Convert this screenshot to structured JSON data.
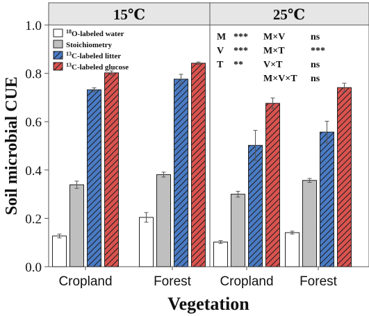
{
  "chart_data": {
    "type": "bar",
    "ylabel": "Soil microbial CUE",
    "xlabel": "Vegetation",
    "ylim": [
      0,
      1.0
    ],
    "yticks": [
      "0.0",
      "0.2",
      "0.4",
      "0.6",
      "0.8",
      "1.0"
    ],
    "grid": false,
    "legend_position": "top-left",
    "series": [
      {
        "name_sup": "18",
        "name": "O-labeled water",
        "color": "#ffffff",
        "pattern": "none"
      },
      {
        "name": "Stoichiometry",
        "color": "#bfbfbf",
        "pattern": "none"
      },
      {
        "name_sup": "13",
        "name": "C-labeled litter",
        "color": "#4a7bc4",
        "pattern": "hatch"
      },
      {
        "name_sup": "13",
        "name": "C-labeled glucose",
        "color": "#d9534f",
        "pattern": "hatch"
      }
    ],
    "panels": [
      {
        "title": "15℃",
        "groups": [
          {
            "category": "Cropland",
            "values": [
              0.127,
              0.339,
              0.732,
              0.802
            ],
            "errors": [
              0.008,
              0.015,
              0.008,
              0.008
            ]
          },
          {
            "category": "Forest",
            "values": [
              0.204,
              0.381,
              0.776,
              0.842
            ],
            "errors": [
              0.02,
              0.01,
              0.02,
              0.005
            ]
          }
        ]
      },
      {
        "title": "25℃",
        "groups": [
          {
            "category": "Cropland",
            "values": [
              0.102,
              0.3,
              0.502,
              0.676
            ],
            "errors": [
              0.006,
              0.012,
              0.062,
              0.022
            ]
          },
          {
            "category": "Forest",
            "values": [
              0.141,
              0.357,
              0.557,
              0.741
            ],
            "errors": [
              0.006,
              0.008,
              0.045,
              0.018
            ]
          }
        ]
      }
    ],
    "annotations": [
      {
        "col": 0,
        "row": 0,
        "term": "M",
        "sig": "***"
      },
      {
        "col": 0,
        "row": 1,
        "term": "V",
        "sig": "***"
      },
      {
        "col": 0,
        "row": 2,
        "term": "T",
        "sig": "**"
      },
      {
        "col": 1,
        "row": 0,
        "term": "M×V",
        "sig": "ns"
      },
      {
        "col": 1,
        "row": 1,
        "term": "M×T",
        "sig": "***"
      },
      {
        "col": 1,
        "row": 2,
        "term": "V×T",
        "sig": "ns"
      },
      {
        "col": 1,
        "row": 3,
        "term": "M×V×T",
        "sig": "ns"
      }
    ]
  }
}
